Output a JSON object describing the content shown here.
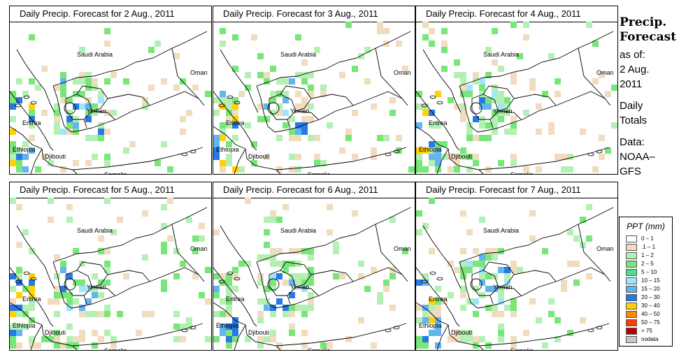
{
  "panels": [
    {
      "title": "Daily Precip. Forecast for  2 Aug., 2011"
    },
    {
      "title": "Daily Precip. Forecast for  3 Aug., 2011"
    },
    {
      "title": "Daily Precip. Forecast for  4 Aug., 2011"
    },
    {
      "title": "Daily Precip. Forecast for  5 Aug., 2011"
    },
    {
      "title": "Daily Precip. Forecast for  6 Aug., 2011"
    },
    {
      "title": "Daily Precip. Forecast for  7 Aug., 2011"
    }
  ],
  "map_labels": {
    "saudi": "Saudi Arabia",
    "oman": "Oman",
    "yemen": "Yemen",
    "eritrea": "Eritrea",
    "ethiopia": "Ethiopia",
    "djibouti": "Djibouti",
    "somalia": "Somalia"
  },
  "side": {
    "title1": "Precip.",
    "title2": "Forecast",
    "asof": "as of:",
    "date1": "2 Aug.",
    "date2": "2011",
    "daily1": "Daily",
    "daily2": "Totals",
    "data1": "Data:",
    "data2": "NOAA–",
    "data3": "GFS"
  },
  "legend": {
    "title": "PPT (mm)",
    "items": [
      {
        "label": "0 – 1",
        "color": "#ffffff"
      },
      {
        "label": ".1 – 1",
        "color": "#f0dcbe"
      },
      {
        "label": "1 – 2",
        "color": "#b4f0b4"
      },
      {
        "label": "2 – 5",
        "color": "#78e678"
      },
      {
        "label": "5 – 10",
        "color": "#50dc8c"
      },
      {
        "label": "10 – 15",
        "color": "#a0e6fa"
      },
      {
        "label": "15 – 20",
        "color": "#64b4f0"
      },
      {
        "label": "20 – 30",
        "color": "#2878e6"
      },
      {
        "label": "30 – 40",
        "color": "#ffd200"
      },
      {
        "label": "40 – 50",
        "color": "#ff8c00"
      },
      {
        "label": "50 – 75",
        "color": "#ff3c00"
      },
      {
        "label": "> 75",
        "color": "#b40000"
      },
      {
        "label": "nodata",
        "color": "#c8c8c8"
      }
    ]
  }
}
